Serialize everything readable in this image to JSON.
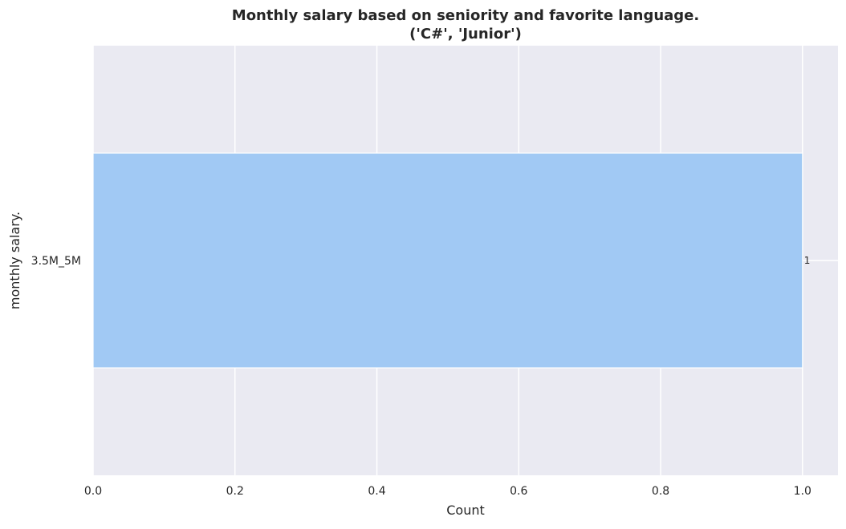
{
  "chart_data": {
    "type": "bar",
    "orientation": "horizontal",
    "title": "Monthly salary based on seniority and favorite language.",
    "subtitle": "('C#', 'Junior')",
    "xlabel": "Count",
    "ylabel": "monthly salary.",
    "categories": [
      "3.5M_5M"
    ],
    "values": [
      1
    ],
    "data_labels": [
      "1"
    ],
    "xlim": [
      0,
      1.05
    ],
    "xticks": [
      0.0,
      0.2,
      0.4,
      0.6,
      0.8,
      1.0
    ],
    "xtick_labels": [
      "0.0",
      "0.2",
      "0.4",
      "0.6",
      "0.8",
      "1.0"
    ],
    "grid": true,
    "colors": {
      "bar": "#a1c9f4",
      "plot_background": "#eaeaf2",
      "grid": "#ffffff",
      "text": "#262626"
    }
  }
}
